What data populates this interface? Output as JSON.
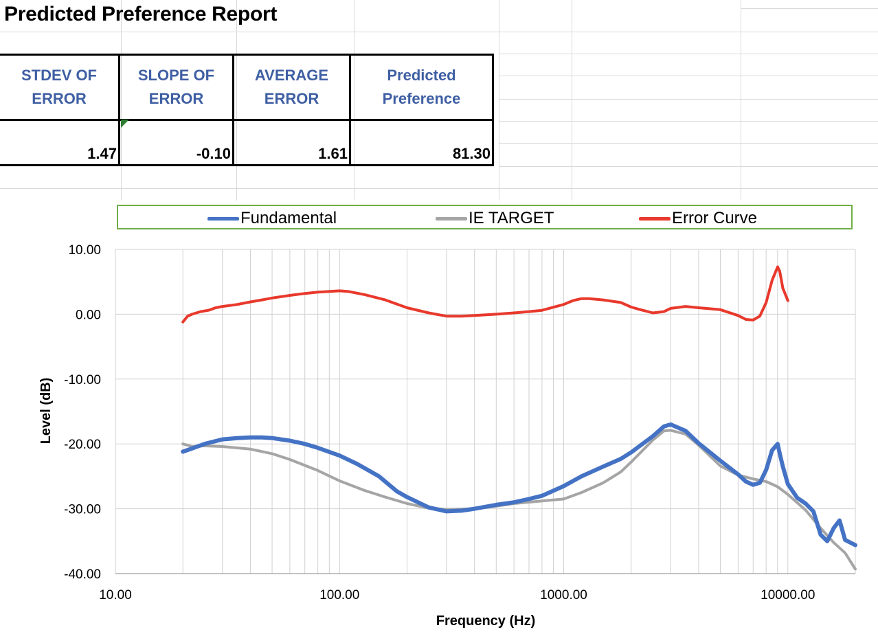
{
  "title": "Predicted Preference Report",
  "metrics": {
    "headers": [
      "STDEV OF\nERROR",
      "SLOPE OF\nERROR",
      "AVERAGE\nERROR",
      "Predicted\nPreference"
    ],
    "values": [
      "1.47",
      "-0.10",
      "1.61",
      "81.30"
    ]
  },
  "colors": {
    "fundamental": "#4472c4",
    "target": "#a5a5a5",
    "error": "#e8392c",
    "header_text": "#3f5fa3",
    "legend_border": "#70ad47"
  },
  "chart_data": {
    "type": "line",
    "xscale": "log",
    "xlim": [
      10,
      20000
    ],
    "ylim": [
      -40,
      10
    ],
    "xlabel": "Frequency (Hz)",
    "ylabel": "Level (dB)",
    "x_tick_labels": [
      "10.00",
      "100.00",
      "1000.00",
      "10000.00"
    ],
    "y_tick_labels": [
      "10.00",
      "0.00",
      "-10.00",
      "-20.00",
      "-30.00",
      "-40.00"
    ],
    "legend_position": "top",
    "grid": true,
    "series": [
      {
        "name": "Fundamental",
        "x": [
          20,
          22,
          25,
          30,
          35,
          40,
          45,
          50,
          60,
          70,
          80,
          100,
          120,
          150,
          180,
          200,
          250,
          300,
          350,
          400,
          500,
          600,
          700,
          800,
          1000,
          1200,
          1500,
          1800,
          2000,
          2500,
          2800,
          3000,
          3500,
          4000,
          5000,
          6000,
          6500,
          7000,
          7500,
          8000,
          8500,
          9000,
          9200,
          9500,
          10000,
          11000,
          12000,
          13000,
          14000,
          15000,
          16000,
          17000,
          18000,
          20000
        ],
        "values": [
          -21.2,
          -20.7,
          -20.0,
          -19.3,
          -19.1,
          -19.0,
          -19.0,
          -19.1,
          -19.5,
          -20.0,
          -20.6,
          -21.8,
          -23.1,
          -25.0,
          -27.3,
          -28.2,
          -29.8,
          -30.4,
          -30.3,
          -30.0,
          -29.4,
          -29.0,
          -28.5,
          -28.0,
          -26.5,
          -25.0,
          -23.5,
          -22.3,
          -21.3,
          -18.8,
          -17.3,
          -17.0,
          -18.0,
          -19.9,
          -22.6,
          -24.7,
          -25.8,
          -26.3,
          -26.0,
          -24.0,
          -21.0,
          -20.0,
          -21.5,
          -23.5,
          -26.2,
          -28.3,
          -29.2,
          -30.4,
          -34.0,
          -35.0,
          -33.0,
          -31.8,
          -34.8,
          -35.6
        ]
      },
      {
        "name": "IE TARGET",
        "x": [
          20,
          22,
          25,
          30,
          40,
          50,
          60,
          80,
          100,
          130,
          160,
          200,
          250,
          300,
          400,
          500,
          600,
          800,
          1000,
          1200,
          1500,
          1800,
          2000,
          2500,
          2800,
          3000,
          3500,
          4000,
          5000,
          6000,
          7000,
          8000,
          9000,
          10000,
          12000,
          14000,
          16000,
          18000,
          20000
        ],
        "values": [
          -20.0,
          -20.4,
          -20.3,
          -20.4,
          -20.8,
          -21.5,
          -22.4,
          -24.1,
          -25.7,
          -27.2,
          -28.2,
          -29.2,
          -29.9,
          -30.1,
          -30.0,
          -29.6,
          -29.2,
          -28.8,
          -28.5,
          -27.5,
          -26.0,
          -24.3,
          -22.8,
          -19.4,
          -18.0,
          -17.9,
          -18.5,
          -20.2,
          -23.4,
          -24.8,
          -25.4,
          -25.8,
          -26.6,
          -27.8,
          -30.2,
          -33.0,
          -35.2,
          -36.8,
          -39.3
        ]
      },
      {
        "name": "Error Curve",
        "x": [
          20,
          21,
          22,
          24,
          26,
          28,
          30,
          35,
          40,
          45,
          50,
          60,
          70,
          80,
          100,
          110,
          130,
          160,
          200,
          250,
          300,
          350,
          400,
          500,
          600,
          700,
          800,
          1000,
          1100,
          1200,
          1300,
          1500,
          1800,
          2000,
          2200,
          2500,
          2800,
          3000,
          3500,
          4000,
          5000,
          6000,
          6500,
          7000,
          7500,
          8000,
          8500,
          9000,
          9200,
          9500,
          10000
        ],
        "values": [
          -1.2,
          -0.3,
          0.0,
          0.4,
          0.6,
          1.0,
          1.2,
          1.5,
          1.9,
          2.2,
          2.5,
          2.9,
          3.2,
          3.4,
          3.6,
          3.5,
          3.0,
          2.2,
          1.0,
          0.2,
          -0.3,
          -0.3,
          -0.2,
          0.0,
          0.2,
          0.4,
          0.6,
          1.5,
          2.1,
          2.4,
          2.4,
          2.2,
          1.8,
          1.1,
          0.7,
          0.2,
          0.4,
          0.9,
          1.2,
          1.0,
          0.7,
          -0.2,
          -0.8,
          -0.9,
          -0.3,
          1.8,
          5.2,
          7.3,
          6.6,
          4.0,
          2.1
        ]
      }
    ]
  }
}
